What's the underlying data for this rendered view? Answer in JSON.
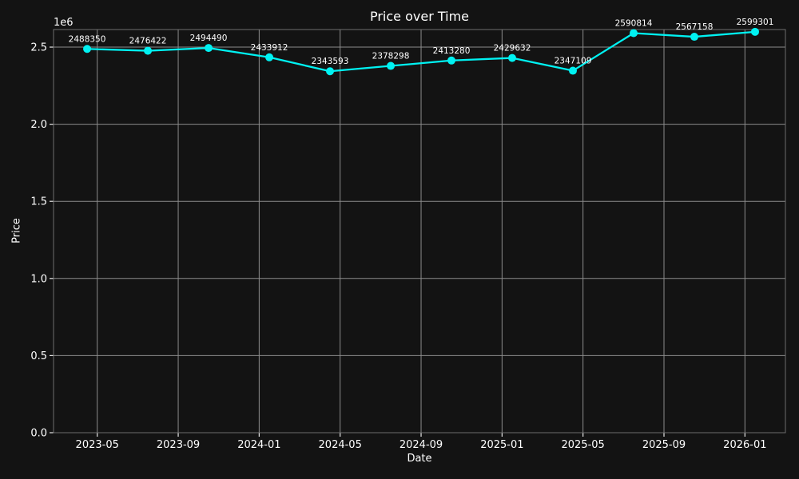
{
  "chart_data": {
    "type": "line",
    "title": "Price over Time",
    "xlabel": "Date",
    "ylabel": "Price",
    "grid": true,
    "legend": false,
    "background_color": "#131313",
    "grid_color": "#8c8c8c",
    "spine_color": "#6e6e6e",
    "tick_color": "#e8e8e8",
    "text_color": "#ffffff",
    "xlim_month_index": [
      1.84,
      38.0
    ],
    "ylim": [
      0,
      2614000
    ],
    "x_ticks": {
      "labels": [
        "2023-05",
        "2023-09",
        "2024-01",
        "2024-05",
        "2024-09",
        "2025-01",
        "2025-05",
        "2025-09",
        "2026-01"
      ],
      "month_index": [
        4,
        8,
        12,
        16,
        20,
        24,
        28,
        32,
        36
      ]
    },
    "y_ticks": {
      "labels": [
        "0.0",
        "0.5",
        "1.0",
        "1.5",
        "2.0",
        "2.5"
      ],
      "values": [
        0,
        500000,
        1000000,
        1500000,
        2000000,
        2500000
      ],
      "offset_label": "1e6"
    },
    "series": [
      {
        "name": "Price",
        "color": "#00f2f2",
        "marker": "circle",
        "x": [
          "2023-04",
          "2023-07",
          "2023-10",
          "2024-01",
          "2024-04",
          "2024-07",
          "2024-10",
          "2025-01",
          "2025-04",
          "2025-07",
          "2025-10",
          "2026-01"
        ],
        "x_month_index": [
          3.5,
          6.5,
          9.5,
          12.5,
          15.5,
          18.5,
          21.5,
          24.5,
          27.5,
          30.5,
          33.5,
          36.5
        ],
        "values": [
          2488350,
          2476422,
          2494490,
          2433912,
          2343593,
          2378298,
          2413280,
          2429632,
          2347109,
          2590814,
          2567158,
          2599301
        ],
        "point_labels": [
          "2488350",
          "2476422",
          "2494490",
          "2433912",
          "2343593",
          "2378298",
          "2413280",
          "2429632",
          "2347109",
          "2590814",
          "2567158",
          "2599301"
        ]
      }
    ]
  }
}
